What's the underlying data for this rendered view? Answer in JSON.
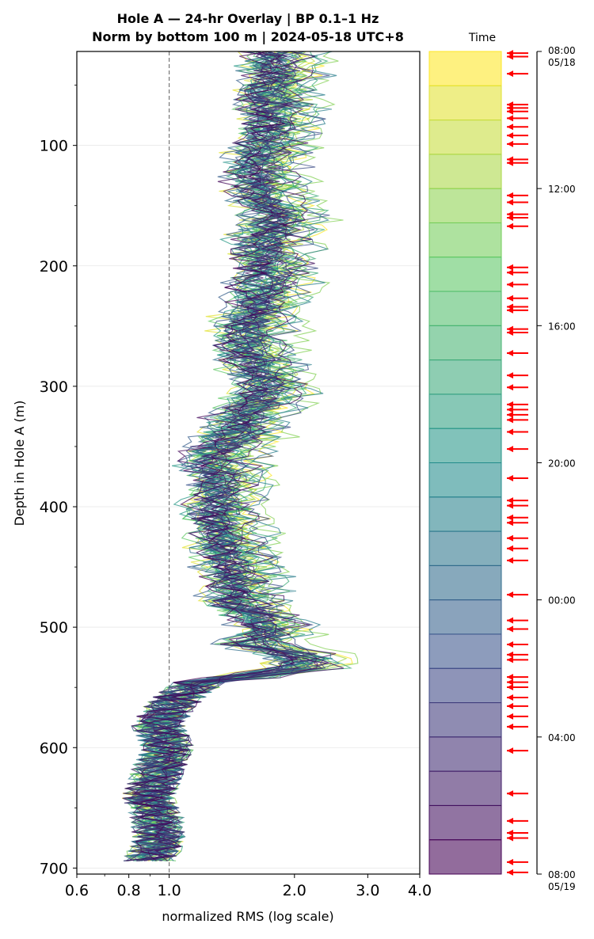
{
  "chart_data": {
    "type": "line",
    "title_line1": "Hole A — 24-hr Overlay  |  BP 0.1–1 Hz",
    "title_line2": "Norm by bottom 100 m  |  2024-05-18 UTC+8",
    "xlabel": "normalized RMS  (log scale)",
    "ylabel": "Depth in Hole A (m)",
    "x_scale": "log",
    "xlim": [
      0.6,
      4.0
    ],
    "ylim": [
      705,
      22
    ],
    "y_inverted": true,
    "x_ticks": [
      0.6,
      0.8,
      1.0,
      2.0,
      3.0,
      4.0
    ],
    "x_tick_labels": [
      "0.6",
      "0.8",
      "1.0",
      "2.0",
      "3.0",
      "4.0"
    ],
    "y_ticks": [
      100,
      200,
      300,
      400,
      500,
      600,
      700
    ],
    "y_tick_labels": [
      "100",
      "200",
      "300",
      "400",
      "500",
      "600",
      "700"
    ],
    "reference_line_x": 1.0,
    "grid": "horizontal",
    "colormap": "viridis",
    "trace_count": 48,
    "mean_profile": [
      [
        22,
        1.8
      ],
      [
        40,
        1.85
      ],
      [
        60,
        1.75
      ],
      [
        80,
        1.8
      ],
      [
        100,
        1.7
      ],
      [
        120,
        1.65
      ],
      [
        140,
        1.68
      ],
      [
        160,
        1.85
      ],
      [
        180,
        1.7
      ],
      [
        200,
        1.75
      ],
      [
        220,
        1.7
      ],
      [
        240,
        1.6
      ],
      [
        260,
        1.55
      ],
      [
        280,
        1.6
      ],
      [
        300,
        1.75
      ],
      [
        320,
        1.55
      ],
      [
        340,
        1.45
      ],
      [
        360,
        1.3
      ],
      [
        380,
        1.35
      ],
      [
        400,
        1.3
      ],
      [
        420,
        1.35
      ],
      [
        440,
        1.4
      ],
      [
        460,
        1.45
      ],
      [
        480,
        1.5
      ],
      [
        500,
        1.75
      ],
      [
        515,
        1.6
      ],
      [
        525,
        2.15
      ],
      [
        535,
        2.0
      ],
      [
        545,
        1.2
      ],
      [
        560,
        1.05
      ],
      [
        580,
        0.95
      ],
      [
        600,
        1.0
      ],
      [
        620,
        0.95
      ],
      [
        640,
        0.9
      ],
      [
        660,
        0.95
      ],
      [
        680,
        0.95
      ],
      [
        695,
        0.9
      ]
    ],
    "colorbar": {
      "title": "Time",
      "tick_labels": [
        "08:00\n05/18",
        "12:00",
        "16:00",
        "20:00",
        "00:00",
        "04:00",
        "08:00\n05/19"
      ],
      "tick_hours": [
        0,
        4,
        8,
        12,
        16,
        20,
        24
      ],
      "bands": 24,
      "arrow_color": "#ff0000",
      "arrow_hours": [
        0.05,
        0.15,
        0.65,
        1.55,
        1.65,
        1.75,
        1.95,
        2.2,
        2.45,
        2.7,
        3.15,
        3.25,
        4.2,
        4.4,
        4.75,
        4.85,
        5.1,
        6.3,
        6.45,
        6.8,
        7.2,
        7.45,
        7.55,
        8.1,
        8.2,
        8.8,
        9.45,
        9.8,
        10.3,
        10.45,
        10.6,
        10.75,
        11.1,
        11.6,
        12.45,
        13.1,
        13.25,
        13.6,
        13.75,
        14.2,
        14.5,
        14.85,
        15.85,
        16.6,
        16.85,
        17.3,
        17.6,
        17.75,
        18.25,
        18.4,
        18.55,
        18.85,
        19.1,
        19.4,
        19.7,
        20.4,
        21.65,
        22.45,
        22.8,
        22.95,
        23.65,
        23.95
      ]
    }
  }
}
